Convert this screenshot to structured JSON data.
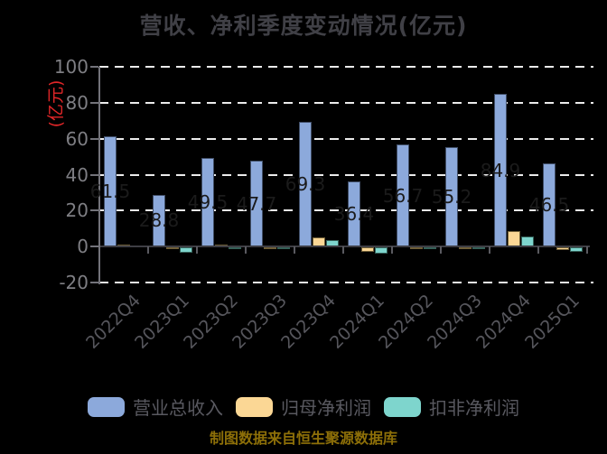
{
  "title": "营收、净利季度变动情况(亿元)",
  "footer": "制图数据来自恒生聚源数据库",
  "colors": {
    "background": "#000000",
    "title_text": "#404046",
    "axis_tick_text": "#7e7e83",
    "x_label_text": "#56565c",
    "grid": "#ebebeb",
    "y_axis_line": "#73737a",
    "zero_line": "#3e3e44",
    "y_axis_label_red": "#e02628",
    "footer_gold": "#8d6f08",
    "bar_value_label": "#1b1b1b"
  },
  "chart_data": {
    "type": "bar",
    "title": "营收、净利季度变动情况(亿元)",
    "xlabel": "",
    "ylabel": "(亿元)",
    "ylim": [
      -20,
      100
    ],
    "yticks": [
      100,
      80,
      60,
      40,
      20,
      0,
      -20
    ],
    "grid": "horizontal dashed white lines, legend at bottom",
    "legend_position": "bottom",
    "categories": [
      "2022Q4",
      "2023Q1",
      "2023Q2",
      "2023Q3",
      "2023Q4",
      "2024Q1",
      "2024Q2",
      "2024Q3",
      "2024Q4",
      "2025Q1"
    ],
    "series": [
      {
        "key": "revenue",
        "name": "营业总收入",
        "color": "#8CA9DB",
        "border": "#414f68",
        "show_value_labels": true,
        "values": [
          61.5,
          28.8,
          49.5,
          47.7,
          69.3,
          36.4,
          56.7,
          55.2,
          84.9,
          46.5
        ]
      },
      {
        "key": "net-profit",
        "name": "归母净利润",
        "color": "#FBD795",
        "border": "#6e5e38",
        "show_value_labels": false,
        "values": [
          1.0,
          -0.8,
          1.0,
          -0.4,
          5.0,
          -2.5,
          -1.0,
          -0.4,
          8.5,
          -1.5
        ]
      },
      {
        "key": "deducted-profit",
        "name": "扣非净利润",
        "color": "#7ED5CD",
        "border": "#356058",
        "show_value_labels": false,
        "values": [
          0.1,
          -3.0,
          -0.4,
          -0.3,
          3.6,
          -3.5,
          -0.8,
          -0.25,
          5.6,
          -2.2
        ]
      }
    ]
  }
}
